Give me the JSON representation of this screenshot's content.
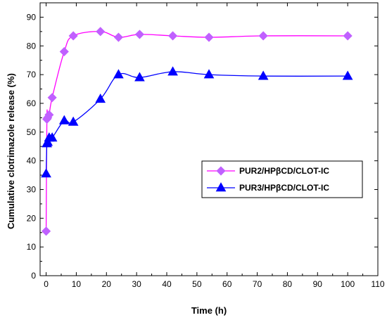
{
  "chart_data": {
    "type": "line",
    "xlabel": "Time (h)",
    "ylabel": "Cumulative clotrimazole release (%)",
    "xlim": [
      -2,
      110
    ],
    "ylim": [
      0,
      95
    ],
    "xticks": [
      0,
      10,
      20,
      30,
      40,
      50,
      60,
      70,
      80,
      90,
      100,
      110
    ],
    "yticks": [
      0,
      10,
      20,
      30,
      40,
      50,
      60,
      70,
      80,
      90
    ],
    "legend_position": "center-right",
    "series": [
      {
        "name": "PUR2/HPβCD/CLOT-IC",
        "color": "#ff00ff",
        "marker": "diamond",
        "marker_color": "#c060ff",
        "x": [
          0,
          0.25,
          0.5,
          1,
          2,
          6,
          9,
          18,
          24,
          31,
          42,
          54,
          72,
          100
        ],
        "y": [
          15.5,
          54.5,
          55,
          56,
          62,
          78,
          83.5,
          85,
          83,
          84,
          83.5,
          83,
          83.5,
          83.5
        ]
      },
      {
        "name": "PUR3/HPβCD/CLOT-IC",
        "color": "#0000ff",
        "marker": "triangle",
        "marker_color": "#0000ff",
        "x": [
          0,
          0.25,
          0.5,
          1,
          2,
          6,
          9,
          18,
          24,
          31,
          42,
          54,
          72,
          100
        ],
        "y": [
          35.5,
          46,
          46.5,
          48,
          48,
          54,
          53.5,
          61.5,
          70,
          69,
          71,
          70,
          69.5,
          69.5
        ]
      }
    ]
  }
}
